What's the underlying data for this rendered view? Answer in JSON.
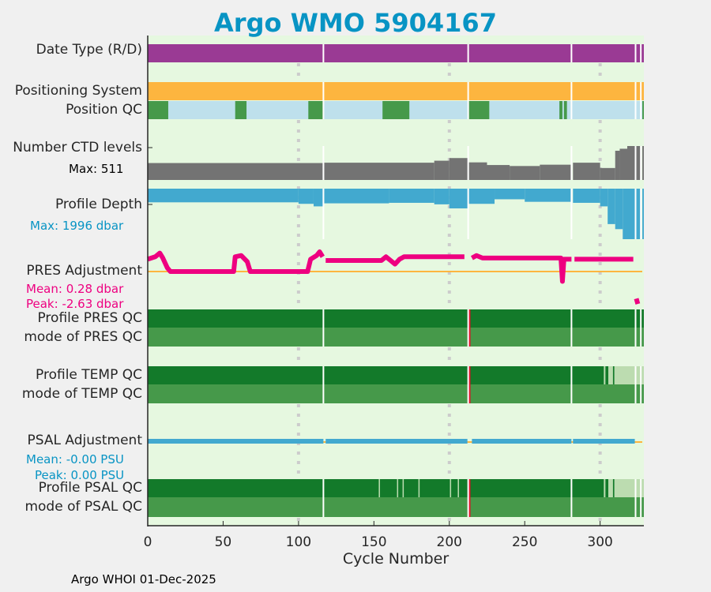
{
  "chart_data": {
    "type": "timeline",
    "title": "Argo WMO 5904167",
    "xlabel": "Cycle Number",
    "xlim": [
      0,
      329
    ],
    "xticks": [
      0,
      50,
      100,
      150,
      200,
      250,
      300
    ],
    "grid_x": [
      100,
      200,
      300
    ],
    "gaps": [
      116.5,
      212.5,
      281,
      323.5,
      327
    ],
    "colors": {
      "bg": "#e6f8e0",
      "purple": "#9a3a94",
      "orange": "#fdb53f",
      "lightblue": "#bee0ec",
      "green": "#46994a",
      "darkgreen": "#137a2a",
      "lightqc": "#bcdcb0",
      "gray": "#737373",
      "blue": "#42a9cf",
      "pink": "#ee0080",
      "red": "#e8102a"
    },
    "labels": {
      "date_type": "Date Type (R/D)",
      "positioning": "Positioning System",
      "position_qc": "Position QC",
      "ctd_levels": "Number CTD levels",
      "ctd_max": "Max: 511",
      "profile_depth": "Profile Depth",
      "depth_max": "Max: 1996 dbar",
      "pres_adj": "PRES Adjustment",
      "pres_mean": "Mean: 0.28 dbar",
      "pres_peak": "Peak: -2.63 dbar",
      "pres_qc": "Profile PRES QC",
      "pres_mode": "mode of PRES QC",
      "temp_qc": "Profile TEMP QC",
      "temp_mode": "mode of TEMP QC",
      "psal_adj": "PSAL Adjustment",
      "psal_mean": "Mean: -0.00 PSU",
      "psal_peak": "Peak: 0.00 PSU",
      "psal_qc": "Profile PSAL QC",
      "psal_mode": "mode of PSAL QC"
    },
    "bar_rows": [
      {
        "name": "date-type",
        "segments": [
          [
            0,
            329,
            "purple"
          ]
        ]
      },
      {
        "name": "positioning-system",
        "segments": [
          [
            0,
            329,
            "orange"
          ]
        ]
      },
      {
        "name": "position-qc",
        "segments": [
          [
            0,
            329,
            "lightblue"
          ],
          [
            0,
            13.6,
            "green"
          ],
          [
            58,
            65.5,
            "green"
          ],
          [
            106.5,
            116.5,
            "green"
          ],
          [
            155.7,
            173.5,
            "green"
          ],
          [
            213,
            226.5,
            "green"
          ],
          [
            273,
            275,
            "green"
          ],
          [
            276,
            278,
            "green"
          ],
          [
            328,
            329,
            "green"
          ]
        ]
      },
      {
        "name": "profile-pres-qc",
        "segments": [
          [
            0,
            329,
            "darkgreen"
          ],
          [
            213,
            214,
            "red"
          ]
        ]
      },
      {
        "name": "mode-pres-qc",
        "segments": [
          [
            0,
            329,
            "green"
          ],
          [
            213,
            214,
            "red"
          ]
        ]
      },
      {
        "name": "profile-temp-qc",
        "segments": [
          [
            0,
            302.5,
            "darkgreen"
          ],
          [
            302.5,
            303.5,
            "lightqc"
          ],
          [
            303.5,
            305.5,
            "darkgreen"
          ],
          [
            305.5,
            308.5,
            "lightqc"
          ],
          [
            308.5,
            309.5,
            "darkgreen"
          ],
          [
            309.5,
            329,
            "lightqc"
          ],
          [
            213,
            214,
            "red"
          ]
        ]
      },
      {
        "name": "mode-temp-qc",
        "segments": [
          [
            0,
            329,
            "green"
          ],
          [
            213,
            214,
            "red"
          ]
        ]
      },
      {
        "name": "profile-psal-qc",
        "segments": [
          [
            0,
            302.5,
            "darkgreen"
          ],
          [
            153.2,
            154,
            "lightqc"
          ],
          [
            165.3,
            166.1,
            "lightqc"
          ],
          [
            169,
            169.8,
            "lightqc"
          ],
          [
            179.5,
            180.3,
            "lightqc"
          ],
          [
            200.4,
            201.2,
            "lightqc"
          ],
          [
            205.6,
            206.4,
            "lightqc"
          ],
          [
            302.5,
            303.5,
            "lightqc"
          ],
          [
            303.5,
            305.5,
            "darkgreen"
          ],
          [
            305.5,
            308.5,
            "lightqc"
          ],
          [
            308.5,
            309.5,
            "darkgreen"
          ],
          [
            309.5,
            329,
            "lightqc"
          ],
          [
            213,
            214,
            "red"
          ]
        ]
      },
      {
        "name": "mode-psal-qc",
        "segments": [
          [
            0,
            329,
            "green"
          ],
          [
            213,
            214,
            "red"
          ]
        ]
      }
    ],
    "ctd_levels": [
      [
        0,
        116.5,
        255
      ],
      [
        117,
        190,
        260
      ],
      [
        190,
        200,
        290
      ],
      [
        200,
        212.5,
        330
      ],
      [
        213,
        225,
        265
      ],
      [
        225,
        240,
        225
      ],
      [
        240,
        260,
        210
      ],
      [
        260,
        281,
        230
      ],
      [
        282,
        300,
        260
      ],
      [
        300,
        310,
        180
      ],
      [
        310,
        313,
        440
      ],
      [
        313,
        318,
        470
      ],
      [
        318,
        323.5,
        511
      ],
      [
        324,
        327,
        511
      ],
      [
        328,
        329,
        511
      ]
    ],
    "ctd_max": 511,
    "profile_depth": [
      [
        0,
        100,
        540
      ],
      [
        100,
        110,
        600
      ],
      [
        110,
        116.5,
        700
      ],
      [
        117,
        160,
        580
      ],
      [
        160,
        190,
        560
      ],
      [
        190,
        200,
        620
      ],
      [
        200,
        212.5,
        780
      ],
      [
        213,
        230,
        600
      ],
      [
        230,
        250,
        420
      ],
      [
        250,
        281,
        520
      ],
      [
        282,
        300,
        560
      ],
      [
        300,
        305,
        700
      ],
      [
        305,
        310,
        1400
      ],
      [
        310,
        315,
        1600
      ],
      [
        315,
        323.5,
        1996
      ],
      [
        324,
        327,
        1996
      ],
      [
        328,
        329,
        1996
      ]
    ],
    "depth_max": 1996,
    "pres_adjustment": [
      [
        [
          0,
          1.0
        ],
        [
          5,
          1.2
        ],
        [
          8,
          1.5
        ],
        [
          10,
          1.1
        ],
        [
          13,
          0.3
        ],
        [
          15,
          0
        ],
        [
          57,
          0
        ],
        [
          58,
          1.2
        ],
        [
          62,
          1.3
        ],
        [
          66,
          0.8
        ],
        [
          68,
          0
        ],
        [
          106,
          0
        ],
        [
          108,
          1.0
        ],
        [
          112,
          1.3
        ],
        [
          114,
          1.6
        ],
        [
          116,
          1.2
        ]
      ],
      [
        [
          118,
          0.9
        ],
        [
          155,
          0.9
        ],
        [
          158,
          1.2
        ],
        [
          161,
          0.9
        ],
        [
          164,
          0.6
        ],
        [
          167,
          1.0
        ],
        [
          170,
          1.2
        ],
        [
          210,
          1.2
        ]
      ],
      [
        [
          215,
          1.1
        ],
        [
          218,
          1.3
        ],
        [
          222,
          1.1
        ],
        [
          274,
          1.1
        ],
        [
          275,
          -0.8
        ],
        [
          276,
          1.0
        ],
        [
          281,
          1.0
        ]
      ],
      [
        [
          283,
          1.0
        ],
        [
          322,
          1.0
        ]
      ],
      [
        [
          324,
          -2.2
        ],
        [
          325,
          -2.63
        ]
      ]
    ],
    "psal_adjustment": [
      [
        [
          0,
          0
        ],
        [
          116.5,
          0
        ]
      ],
      [
        [
          118,
          0
        ],
        [
          212,
          0
        ]
      ],
      [
        [
          215,
          0
        ],
        [
          281,
          0
        ]
      ],
      [
        [
          282,
          0
        ],
        [
          323,
          0
        ]
      ]
    ]
  },
  "footer": "Argo WHOI 01-Dec-2025"
}
